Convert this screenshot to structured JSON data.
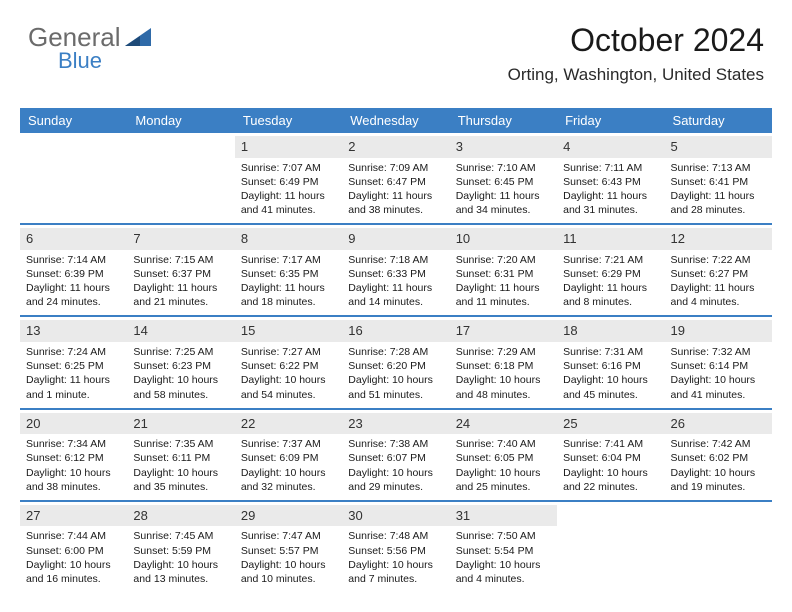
{
  "brand": {
    "part1": "General",
    "part2": "Blue"
  },
  "title": "October 2024",
  "location": "Orting, Washington, United States",
  "colors": {
    "header_bg": "#3b7fc4",
    "header_text": "#ffffff",
    "date_bg": "#eaeaea",
    "border": "#3b7fc4",
    "body_text": "#1a1a1a",
    "brand_gray": "#6b6b6b",
    "brand_blue": "#3b7fc4"
  },
  "day_names": [
    "Sunday",
    "Monday",
    "Tuesday",
    "Wednesday",
    "Thursday",
    "Friday",
    "Saturday"
  ],
  "weeks": [
    [
      {
        "empty": true
      },
      {
        "empty": true
      },
      {
        "n": "1",
        "sr": "Sunrise: 7:07 AM",
        "ss": "Sunset: 6:49 PM",
        "dl": "Daylight: 11 hours and 41 minutes."
      },
      {
        "n": "2",
        "sr": "Sunrise: 7:09 AM",
        "ss": "Sunset: 6:47 PM",
        "dl": "Daylight: 11 hours and 38 minutes."
      },
      {
        "n": "3",
        "sr": "Sunrise: 7:10 AM",
        "ss": "Sunset: 6:45 PM",
        "dl": "Daylight: 11 hours and 34 minutes."
      },
      {
        "n": "4",
        "sr": "Sunrise: 7:11 AM",
        "ss": "Sunset: 6:43 PM",
        "dl": "Daylight: 11 hours and 31 minutes."
      },
      {
        "n": "5",
        "sr": "Sunrise: 7:13 AM",
        "ss": "Sunset: 6:41 PM",
        "dl": "Daylight: 11 hours and 28 minutes."
      }
    ],
    [
      {
        "n": "6",
        "sr": "Sunrise: 7:14 AM",
        "ss": "Sunset: 6:39 PM",
        "dl": "Daylight: 11 hours and 24 minutes."
      },
      {
        "n": "7",
        "sr": "Sunrise: 7:15 AM",
        "ss": "Sunset: 6:37 PM",
        "dl": "Daylight: 11 hours and 21 minutes."
      },
      {
        "n": "8",
        "sr": "Sunrise: 7:17 AM",
        "ss": "Sunset: 6:35 PM",
        "dl": "Daylight: 11 hours and 18 minutes."
      },
      {
        "n": "9",
        "sr": "Sunrise: 7:18 AM",
        "ss": "Sunset: 6:33 PM",
        "dl": "Daylight: 11 hours and 14 minutes."
      },
      {
        "n": "10",
        "sr": "Sunrise: 7:20 AM",
        "ss": "Sunset: 6:31 PM",
        "dl": "Daylight: 11 hours and 11 minutes."
      },
      {
        "n": "11",
        "sr": "Sunrise: 7:21 AM",
        "ss": "Sunset: 6:29 PM",
        "dl": "Daylight: 11 hours and 8 minutes."
      },
      {
        "n": "12",
        "sr": "Sunrise: 7:22 AM",
        "ss": "Sunset: 6:27 PM",
        "dl": "Daylight: 11 hours and 4 minutes."
      }
    ],
    [
      {
        "n": "13",
        "sr": "Sunrise: 7:24 AM",
        "ss": "Sunset: 6:25 PM",
        "dl": "Daylight: 11 hours and 1 minute."
      },
      {
        "n": "14",
        "sr": "Sunrise: 7:25 AM",
        "ss": "Sunset: 6:23 PM",
        "dl": "Daylight: 10 hours and 58 minutes."
      },
      {
        "n": "15",
        "sr": "Sunrise: 7:27 AM",
        "ss": "Sunset: 6:22 PM",
        "dl": "Daylight: 10 hours and 54 minutes."
      },
      {
        "n": "16",
        "sr": "Sunrise: 7:28 AM",
        "ss": "Sunset: 6:20 PM",
        "dl": "Daylight: 10 hours and 51 minutes."
      },
      {
        "n": "17",
        "sr": "Sunrise: 7:29 AM",
        "ss": "Sunset: 6:18 PM",
        "dl": "Daylight: 10 hours and 48 minutes."
      },
      {
        "n": "18",
        "sr": "Sunrise: 7:31 AM",
        "ss": "Sunset: 6:16 PM",
        "dl": "Daylight: 10 hours and 45 minutes."
      },
      {
        "n": "19",
        "sr": "Sunrise: 7:32 AM",
        "ss": "Sunset: 6:14 PM",
        "dl": "Daylight: 10 hours and 41 minutes."
      }
    ],
    [
      {
        "n": "20",
        "sr": "Sunrise: 7:34 AM",
        "ss": "Sunset: 6:12 PM",
        "dl": "Daylight: 10 hours and 38 minutes."
      },
      {
        "n": "21",
        "sr": "Sunrise: 7:35 AM",
        "ss": "Sunset: 6:11 PM",
        "dl": "Daylight: 10 hours and 35 minutes."
      },
      {
        "n": "22",
        "sr": "Sunrise: 7:37 AM",
        "ss": "Sunset: 6:09 PM",
        "dl": "Daylight: 10 hours and 32 minutes."
      },
      {
        "n": "23",
        "sr": "Sunrise: 7:38 AM",
        "ss": "Sunset: 6:07 PM",
        "dl": "Daylight: 10 hours and 29 minutes."
      },
      {
        "n": "24",
        "sr": "Sunrise: 7:40 AM",
        "ss": "Sunset: 6:05 PM",
        "dl": "Daylight: 10 hours and 25 minutes."
      },
      {
        "n": "25",
        "sr": "Sunrise: 7:41 AM",
        "ss": "Sunset: 6:04 PM",
        "dl": "Daylight: 10 hours and 22 minutes."
      },
      {
        "n": "26",
        "sr": "Sunrise: 7:42 AM",
        "ss": "Sunset: 6:02 PM",
        "dl": "Daylight: 10 hours and 19 minutes."
      }
    ],
    [
      {
        "n": "27",
        "sr": "Sunrise: 7:44 AM",
        "ss": "Sunset: 6:00 PM",
        "dl": "Daylight: 10 hours and 16 minutes."
      },
      {
        "n": "28",
        "sr": "Sunrise: 7:45 AM",
        "ss": "Sunset: 5:59 PM",
        "dl": "Daylight: 10 hours and 13 minutes."
      },
      {
        "n": "29",
        "sr": "Sunrise: 7:47 AM",
        "ss": "Sunset: 5:57 PM",
        "dl": "Daylight: 10 hours and 10 minutes."
      },
      {
        "n": "30",
        "sr": "Sunrise: 7:48 AM",
        "ss": "Sunset: 5:56 PM",
        "dl": "Daylight: 10 hours and 7 minutes."
      },
      {
        "n": "31",
        "sr": "Sunrise: 7:50 AM",
        "ss": "Sunset: 5:54 PM",
        "dl": "Daylight: 10 hours and 4 minutes."
      },
      {
        "empty": true
      },
      {
        "empty": true
      }
    ]
  ]
}
